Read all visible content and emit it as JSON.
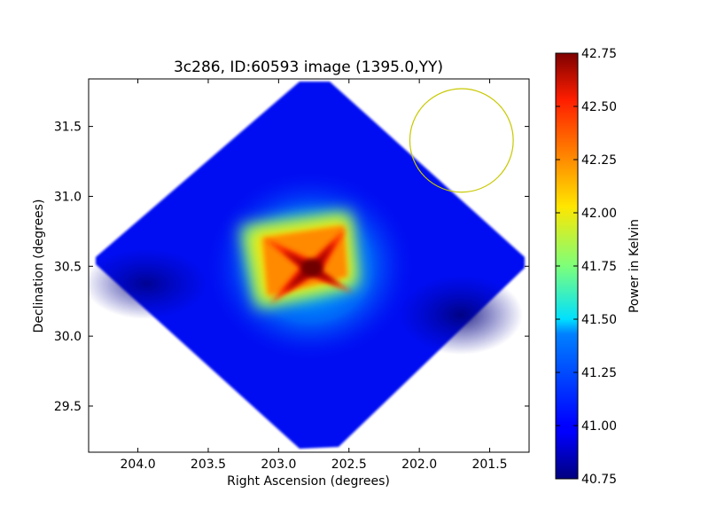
{
  "chart_data": {
    "type": "heatmap",
    "title": "3c286, ID:60593 image (1395.0,YY)",
    "xlabel": "Right Ascension (degrees)",
    "ylabel": "Declination (degrees)",
    "xlim": [
      204.35,
      201.22
    ],
    "ylim": [
      29.17,
      31.84
    ],
    "x_inverted": true,
    "xticks": [
      "204.0",
      "203.5",
      "203.0",
      "202.5",
      "202.0",
      "201.5"
    ],
    "yticks": [
      "29.5",
      "30.0",
      "30.5",
      "31.0",
      "31.5"
    ],
    "grid": false,
    "colorbar": {
      "label": "Power in Kelvin",
      "colormap": "jet",
      "min": 40.75,
      "max": 42.75,
      "ticks": [
        "40.75",
        "41.00",
        "41.25",
        "41.50",
        "41.75",
        "42.00",
        "42.25",
        "42.50",
        "42.75"
      ]
    },
    "peak": {
      "ra": 202.78,
      "dec": 30.5,
      "value": 42.75
    },
    "coverage_region": {
      "shape": "diamond",
      "center_ra": 202.78,
      "center_dec": 30.5,
      "ra_extent": [
        204.3,
        201.25
      ],
      "dec_extent": [
        29.2,
        31.82
      ],
      "background_value": 40.9
    },
    "beam_marker": {
      "shape": "circle",
      "ra": 201.7,
      "dec": 31.4,
      "radius_deg": 0.37,
      "color": "#c8c800"
    }
  }
}
